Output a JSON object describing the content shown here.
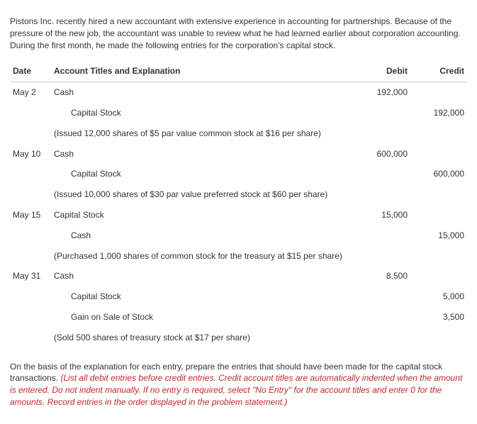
{
  "intro": "Pistons Inc. recently hired a new accountant with extensive experience in accounting for partnerships. Because of the pressure of the new job, the accountant was unable to review what he had learned earlier about corporation accounting. During the first month, he made the following entries for the corporation's capital stock.",
  "headers": {
    "date": "Date",
    "acct": "Account Titles and Explanation",
    "debit": "Debit",
    "credit": "Credit"
  },
  "rows": [
    {
      "date": "May 2",
      "acct": "Cash",
      "indent": 0,
      "debit": "192,000",
      "credit": ""
    },
    {
      "date": "",
      "acct": "Capital Stock",
      "indent": 1,
      "debit": "",
      "credit": "192,000"
    },
    {
      "date": "",
      "acct": "(Issued 12,000 shares of $5 par value common stock at $16 per share)",
      "indent": 0,
      "explain": true,
      "debit": "",
      "credit": ""
    },
    {
      "date": "May 10",
      "acct": "Cash",
      "indent": 0,
      "debit": "600,000",
      "credit": ""
    },
    {
      "date": "",
      "acct": "Capital Stock",
      "indent": 1,
      "debit": "",
      "credit": "600,000"
    },
    {
      "date": "",
      "acct": "(Issued 10,000 shares of $30 par value preferred stock at $60 per share)",
      "indent": 0,
      "explain": true,
      "debit": "",
      "credit": ""
    },
    {
      "date": "May 15",
      "acct": "Capital Stock",
      "indent": 0,
      "debit": "15,000",
      "credit": ""
    },
    {
      "date": "",
      "acct": "Cash",
      "indent": 1,
      "debit": "",
      "credit": "15,000"
    },
    {
      "date": "",
      "acct": "(Purchased 1,000 shares of common stock for the treasury at $15 per share)",
      "indent": 0,
      "explain": true,
      "debit": "",
      "credit": ""
    },
    {
      "date": "May 31",
      "acct": "Cash",
      "indent": 0,
      "debit": "8,500",
      "credit": ""
    },
    {
      "date": "",
      "acct": "Capital Stock",
      "indent": 1,
      "debit": "",
      "credit": "5,000"
    },
    {
      "date": "",
      "acct": "Gain on Sale of Stock",
      "indent": 1,
      "debit": "",
      "credit": "3,500"
    },
    {
      "date": "",
      "acct": "(Sold 500 shares of treasury stock at $17 per share)",
      "indent": 0,
      "explain": true,
      "debit": "",
      "credit": ""
    }
  ],
  "footer_plain": "On the basis of the explanation for each entry, prepare the entries that should have been made for the capital stock transactions. ",
  "footer_red": "(List all debit entries before credit entries. Credit account titles are automatically indented when the amount is entered. Do not indent manually. If no entry is required, select \"No Entry\" for the account titles and enter 0 for the amounts. Record entries in the order displayed in the problem statement.)"
}
